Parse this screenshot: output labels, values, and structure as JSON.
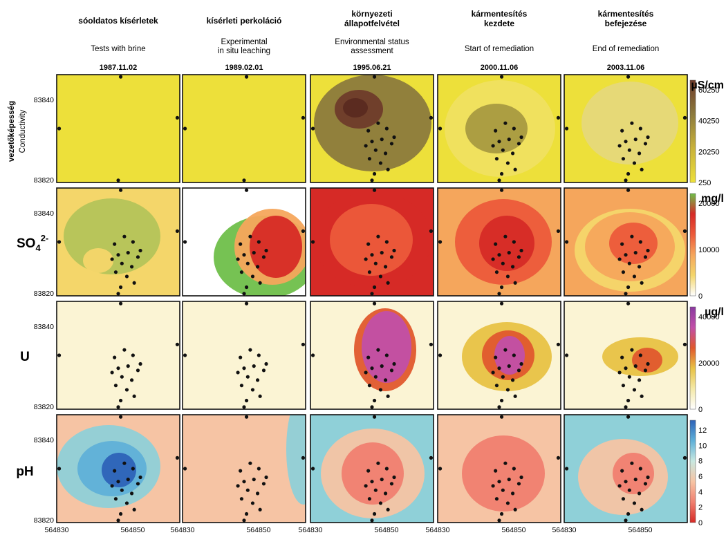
{
  "chart_data": {
    "type": "heatmap",
    "title": "",
    "columns": [
      {
        "hu": "sóoldatos kísérletek",
        "en": "Tests with brine",
        "date": "1987.11.02"
      },
      {
        "hu": "kísérleti perkoláció",
        "en": "Experimental in situ leaching",
        "date": "1989.02.01"
      },
      {
        "hu": "környezeti állapotfelvétel",
        "en": "Environmental status assessment",
        "date": "1995.06.21"
      },
      {
        "hu": "kármentesítés kezdete",
        "en": "Start of remediation",
        "date": "2000.11.06"
      },
      {
        "hu": "kármentesítés befejezése",
        "en": "End of remediation",
        "date": "2003.11.06"
      }
    ],
    "rows": [
      {
        "label": "vezetőképesség",
        "label2": "Conductivity",
        "unit": "µS/cm",
        "colorbar_ticks": [
          "60250",
          "40250",
          "20250",
          "250"
        ],
        "colors": [
          "#ede03a",
          "#c9b23a",
          "#8c7a3c",
          "#6f3b2a"
        ]
      },
      {
        "label": "SO4",
        "sup": "2-",
        "unit": "mg/l",
        "colorbar_ticks": [
          "20000",
          "10000",
          "0"
        ],
        "colors": [
          "#ffffff",
          "#f4d66a",
          "#f5a65c",
          "#ec5a3a",
          "#d62a26",
          "#6fbf4a"
        ]
      },
      {
        "label": "U",
        "unit": "µg/l",
        "colorbar_ticks": [
          "40000",
          "20000",
          "0"
        ],
        "colors": [
          "#ffffff",
          "#f4e9a8",
          "#e8c245",
          "#e0582d",
          "#c14fa8",
          "#8a3aa0"
        ]
      },
      {
        "label": "pH",
        "unit": "",
        "colorbar_ticks": [
          "12",
          "10",
          "8",
          "6",
          "4",
          "2",
          "0"
        ],
        "colors": [
          "#d62a26",
          "#f08070",
          "#f6c4a4",
          "#c8e8e0",
          "#5fb0d8",
          "#2d63b8"
        ]
      }
    ],
    "x_ticks": [
      "564830",
      "564850"
    ],
    "y_ticks": [
      "83840",
      "83820"
    ],
    "grid": false
  }
}
